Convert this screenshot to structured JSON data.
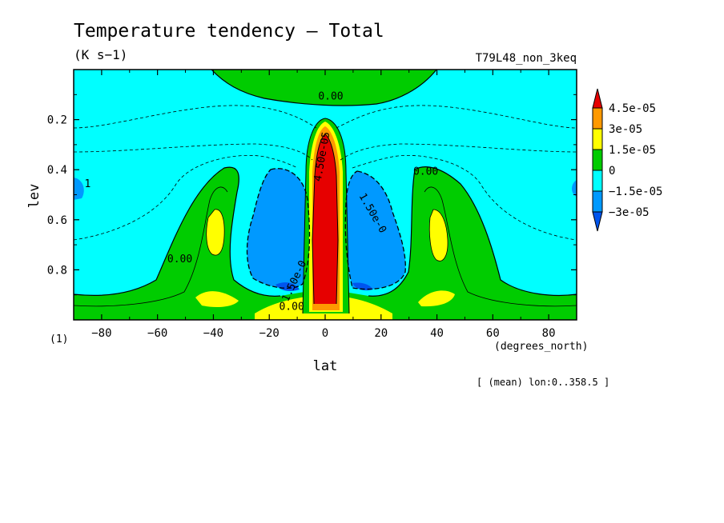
{
  "chart_data": {
    "type": "heatmap",
    "title": "Temperature tendency — Total",
    "units": "(K s−1)",
    "run_label": "T79L48_non_3keq",
    "panel_label": "(1)",
    "xlabel": "lat",
    "xunits": "(degrees_north)",
    "ylabel": "lev",
    "footnote": "[ (mean) lon:0..358.5 ]",
    "xlim": [
      -90,
      90
    ],
    "ylim": [
      1.0,
      0.0
    ],
    "xticks": [
      -80,
      -60,
      -40,
      -20,
      0,
      20,
      40,
      60,
      80
    ],
    "yticks": [
      0.2,
      0.4,
      0.6,
      0.8
    ],
    "xtick_labels": [
      "−80",
      "−60",
      "−40",
      "−20",
      "0",
      "20",
      "40",
      "60",
      "80"
    ],
    "ytick_labels": [
      "0.2",
      "0.4",
      "0.6",
      "0.8"
    ],
    "legend": {
      "placement": "right",
      "levels": [
        "4.5e-05",
        "3e-05",
        "1.5e-05",
        "0",
        "−1.5e-05",
        "−3e-05"
      ],
      "colors": [
        "#e60000",
        "#ff9900",
        "#ffff00",
        "#00cc00",
        "#00ffff",
        "#0099ff",
        "#0055ee"
      ]
    },
    "contour_labels": [
      {
        "text": "0.00",
        "lat": 2,
        "lev": 0.12
      },
      {
        "text": "0.00",
        "lat": 36,
        "lev": 0.42
      },
      {
        "text": "0.00",
        "lat": -52,
        "lev": 0.77
      },
      {
        "text": "0.00",
        "lat": -12,
        "lev": 0.96
      },
      {
        "text": "1.50e-0",
        "lat": 16,
        "lev": 0.58
      },
      {
        "text": "1.50e-0",
        "lat": -10,
        "lev": 0.85
      },
      {
        "text": "4.50e-05",
        "lat": 0,
        "lev": 0.35
      },
      {
        "text": "1",
        "lat": -85,
        "lev": 0.47
      }
    ]
  }
}
